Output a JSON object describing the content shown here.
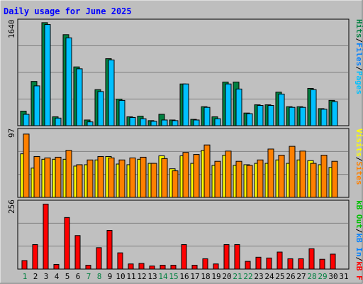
{
  "title": "Daily usage for June 2025",
  "colors": {
    "background": "#bebebe",
    "panel": "#c0c0c0",
    "grid": "#808080",
    "title": "#0000ff",
    "hits": "#008040",
    "files": "#00c0ff",
    "pages": "#00e0ff",
    "visits": "#ffff00",
    "sites": "#ff8000",
    "kbin": "#0080ff",
    "kbout": "#00c000",
    "kbf": "#ff0000",
    "weekend": "#008040",
    "weekday": "#000000"
  },
  "right_labels": {
    "top": [
      {
        "text": "Hits",
        "color": "#008040"
      },
      {
        "text": "/",
        "color": "#000000"
      },
      {
        "text": "Files",
        "color": "#0080ff"
      },
      {
        "text": "/",
        "color": "#000000"
      },
      {
        "text": "Pages",
        "color": "#00c0ff"
      }
    ],
    "mid": [
      {
        "text": "Visits",
        "color": "#ffff00"
      },
      {
        "text": "/",
        "color": "#000000"
      },
      {
        "text": "Sites",
        "color": "#ff8000"
      }
    ],
    "bot": [
      {
        "text": "kB Out",
        "color": "#00c000"
      },
      {
        "text": "/",
        "color": "#000000"
      },
      {
        "text": "kB In",
        "color": "#0080ff"
      },
      {
        "text": "/",
        "color": "#000000"
      },
      {
        "text": "kB F",
        "color": "#ff0000"
      }
    ]
  },
  "chart_data": [
    {
      "type": "bar",
      "panel": "hits_files_pages",
      "ymax_label": "1640",
      "ymax": 1640,
      "x": [
        1,
        2,
        3,
        4,
        5,
        6,
        7,
        8,
        9,
        10,
        11,
        12,
        13,
        14,
        15,
        16,
        17,
        18,
        19,
        20,
        21,
        22,
        23,
        24,
        25,
        26,
        27,
        28,
        29,
        30
      ],
      "series": [
        {
          "name": "Hits",
          "color": "#008040",
          "values": [
            230,
            700,
            1630,
            140,
            1440,
            930,
            90,
            570,
            1060,
            420,
            140,
            150,
            80,
            180,
            90,
            660,
            100,
            300,
            140,
            690,
            690,
            200,
            330,
            330,
            530,
            300,
            300,
            590,
            270,
            400
          ]
        },
        {
          "name": "Files",
          "color": "#00c0ff",
          "values": [
            180,
            630,
            1600,
            120,
            1390,
            900,
            60,
            540,
            1040,
            400,
            130,
            110,
            70,
            90,
            80,
            660,
            90,
            290,
            110,
            660,
            580,
            190,
            320,
            320,
            500,
            290,
            290,
            570,
            260,
            380
          ]
        }
      ]
    },
    {
      "type": "bar",
      "panel": "visits_sites",
      "ymax_label": "97",
      "ymax": 97,
      "x": [
        1,
        2,
        3,
        4,
        5,
        6,
        7,
        8,
        9,
        10,
        11,
        12,
        13,
        14,
        15,
        16,
        17,
        18,
        19,
        20,
        21,
        22,
        23,
        24,
        25,
        26,
        27,
        28,
        29,
        30
      ],
      "series": [
        {
          "name": "Visits",
          "color": "#ffff00",
          "values": [
            64,
            43,
            56,
            56,
            56,
            46,
            48,
            55,
            60,
            49,
            48,
            56,
            50,
            61,
            42,
            61,
            50,
            69,
            47,
            62,
            47,
            48,
            50,
            50,
            55,
            50,
            55,
            54,
            48,
            44
          ]
        },
        {
          "name": "Sites",
          "color": "#ff8000",
          "values": [
            93,
            60,
            58,
            59,
            69,
            48,
            55,
            60,
            58,
            55,
            58,
            59,
            50,
            57,
            39,
            66,
            63,
            77,
            53,
            68,
            53,
            47,
            55,
            71,
            62,
            75,
            68,
            50,
            62,
            53
          ]
        }
      ]
    },
    {
      "type": "bar",
      "panel": "kbf",
      "ymax_label": "256",
      "ymax": 256,
      "x": [
        1,
        2,
        3,
        4,
        5,
        6,
        7,
        8,
        9,
        10,
        11,
        12,
        13,
        14,
        15,
        16,
        17,
        18,
        19,
        20,
        21,
        22,
        23,
        24,
        25,
        26,
        27,
        28,
        29,
        30
      ],
      "series": [
        {
          "name": "kB F",
          "color": "#ff0000",
          "values": [
            33,
            95,
            252,
            18,
            200,
            130,
            15,
            83,
            150,
            63,
            20,
            22,
            12,
            15,
            15,
            95,
            15,
            40,
            20,
            95,
            95,
            30,
            46,
            43,
            66,
            40,
            40,
            79,
            38,
            58
          ]
        }
      ]
    }
  ],
  "x_labels": [
    {
      "d": "1",
      "weekend": true
    },
    {
      "d": "2",
      "weekend": false
    },
    {
      "d": "3",
      "weekend": false
    },
    {
      "d": "4",
      "weekend": false
    },
    {
      "d": "5",
      "weekend": false
    },
    {
      "d": "6",
      "weekend": false
    },
    {
      "d": "7",
      "weekend": true
    },
    {
      "d": "8",
      "weekend": true
    },
    {
      "d": "9",
      "weekend": false
    },
    {
      "d": "10",
      "weekend": false
    },
    {
      "d": "11",
      "weekend": false
    },
    {
      "d": "12",
      "weekend": false
    },
    {
      "d": "13",
      "weekend": false
    },
    {
      "d": "14",
      "weekend": true
    },
    {
      "d": "15",
      "weekend": true
    },
    {
      "d": "16",
      "weekend": false
    },
    {
      "d": "17",
      "weekend": false
    },
    {
      "d": "18",
      "weekend": false
    },
    {
      "d": "19",
      "weekend": false
    },
    {
      "d": "20",
      "weekend": false
    },
    {
      "d": "21",
      "weekend": true
    },
    {
      "d": "22",
      "weekend": true
    },
    {
      "d": "23",
      "weekend": false
    },
    {
      "d": "24",
      "weekend": false
    },
    {
      "d": "25",
      "weekend": false
    },
    {
      "d": "26",
      "weekend": false
    },
    {
      "d": "27",
      "weekend": false
    },
    {
      "d": "28",
      "weekend": true
    },
    {
      "d": "29",
      "weekend": true
    },
    {
      "d": "30",
      "weekend": false
    },
    {
      "d": "31",
      "weekend": false
    }
  ]
}
